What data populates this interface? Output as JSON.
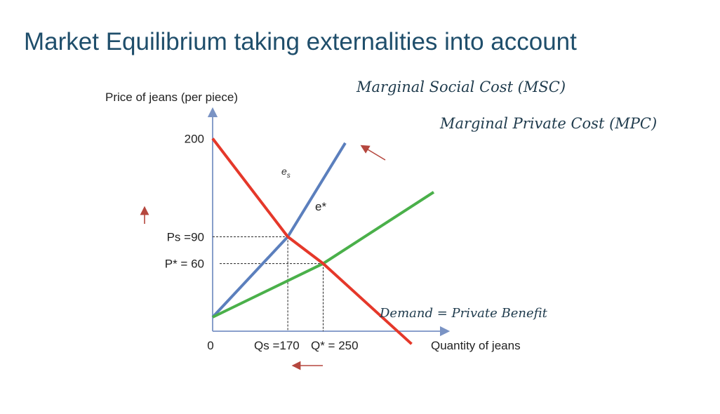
{
  "slide": {
    "title": "Market Equilibrium taking externalities into account"
  },
  "colors": {
    "msc": "#5b7fbd",
    "mpc": "#4ab04a",
    "demand": "#e5382a",
    "arrow": "#b5473e",
    "axis": "#7a93c4"
  },
  "chart_data": {
    "type": "line",
    "ylabel": "Price of jeans (per piece)",
    "xlabel": "Quantity of jeans",
    "y_ticks": [
      {
        "value": 200,
        "label": "200"
      },
      {
        "value": 90,
        "label": "Ps =90"
      },
      {
        "value": 60,
        "label": "P* = 60"
      }
    ],
    "x_ticks": [
      {
        "value": 0,
        "label": "0"
      },
      {
        "value": 170,
        "label": "Qs =170"
      },
      {
        "value": 250,
        "label": "Q* = 250"
      }
    ],
    "series": [
      {
        "name": "Marginal Social Cost (MSC)",
        "points": [
          [
            0,
            0
          ],
          [
            170,
            90
          ],
          [
            300,
            195
          ]
        ]
      },
      {
        "name": "Marginal Private Cost (MPC)",
        "points": [
          [
            0,
            0
          ],
          [
            250,
            60
          ],
          [
            500,
            140
          ]
        ]
      },
      {
        "name": "Demand = Private Benefit",
        "points": [
          [
            0,
            200
          ],
          [
            170,
            90
          ],
          [
            250,
            60
          ],
          [
            450,
            -30
          ]
        ]
      }
    ],
    "points": [
      {
        "label": "e_s",
        "x": 170,
        "y": 90
      },
      {
        "label": "e*",
        "x": 250,
        "y": 60
      }
    ],
    "annotations": {
      "es_main": "e",
      "es_sub": "s",
      "estar": "e*",
      "price_shift": "up",
      "quantity_shift": "left",
      "cost_shift": "up-left"
    }
  }
}
